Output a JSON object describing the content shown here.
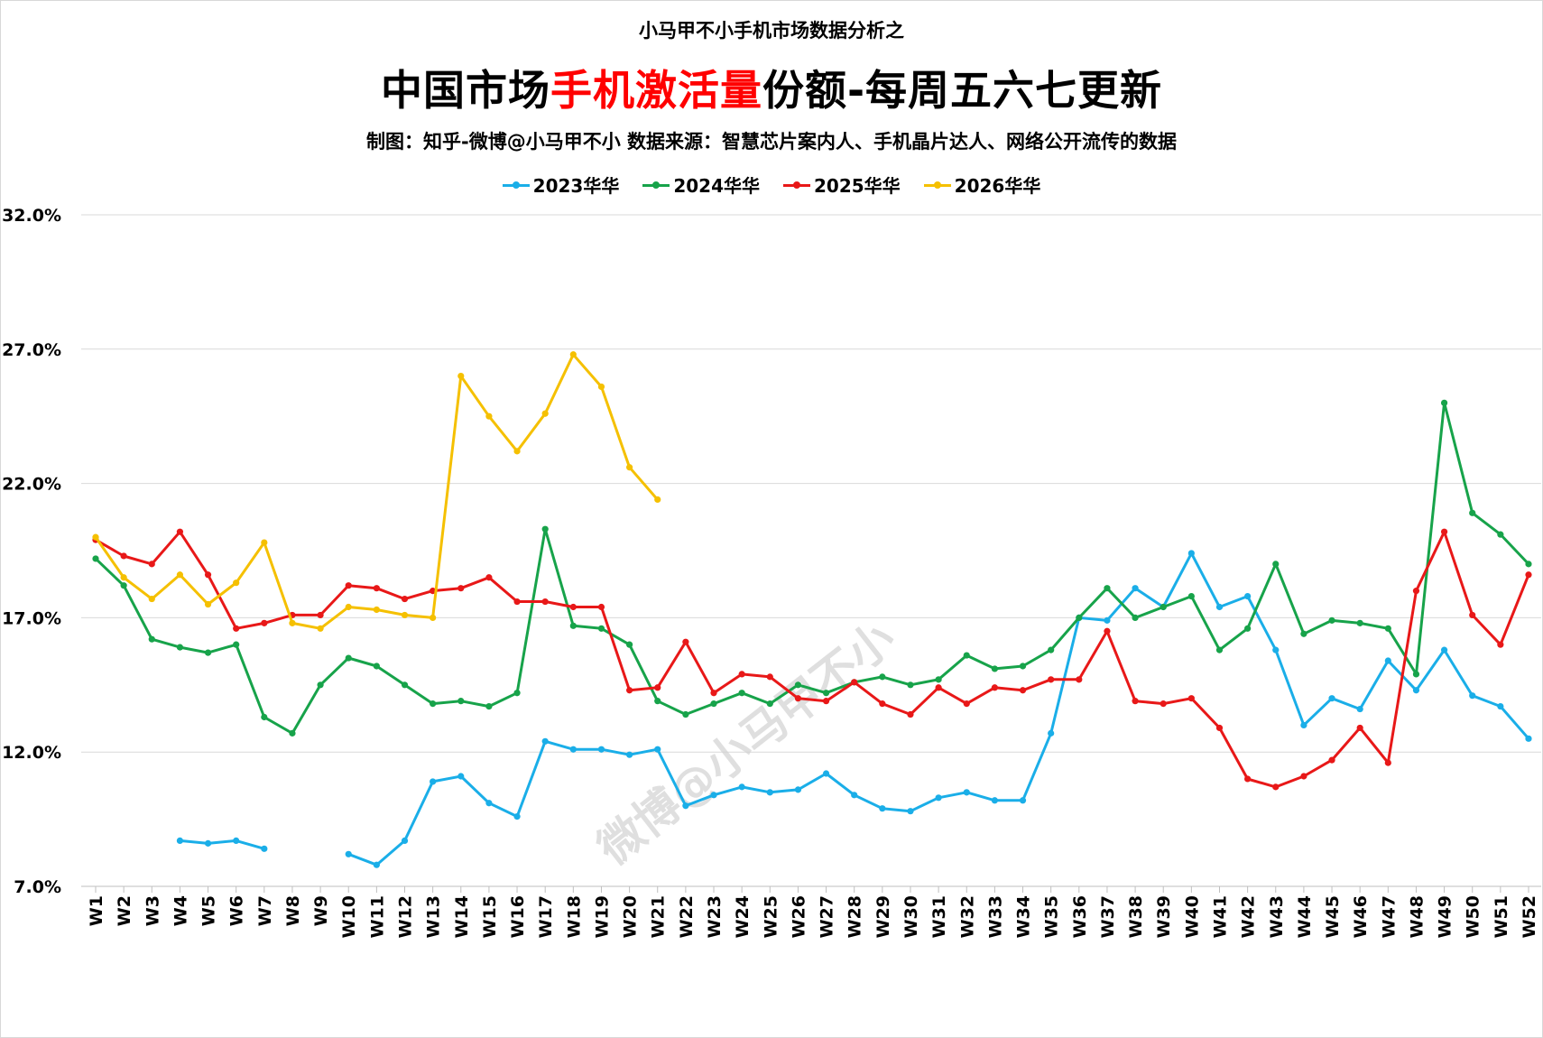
{
  "header": {
    "pretitle": "小马甲不小手机市场数据分析之",
    "title_prefix": "中国市场",
    "title_highlight": "手机激活量",
    "title_suffix": "份额-每周五六七更新",
    "subtitle": "制图：知乎-微博@小马甲不小   数据来源：智慧芯片案内人、手机晶片达人、网络公开流传的数据"
  },
  "watermark": "微博@小马甲不小",
  "chart_data": {
    "type": "line",
    "title": "中国市场手机激活量份额-每周五六七更新",
    "ylim": [
      7,
      32
    ],
    "yticks": [
      "32.0%",
      "27.0%",
      "22.0%",
      "17.0%",
      "12.0%",
      "7.0%"
    ],
    "ytick_values": [
      32,
      27,
      22,
      17,
      12,
      7
    ],
    "grid": true,
    "legend": "top-center",
    "categories": [
      "W1",
      "W2",
      "W3",
      "W4",
      "W5",
      "W6",
      "W7",
      "W8",
      "W9",
      "W10",
      "W11",
      "W12",
      "W13",
      "W14",
      "W15",
      "W16",
      "W17",
      "W18",
      "W19",
      "W20",
      "W21",
      "W22",
      "W23",
      "W24",
      "W25",
      "W26",
      "W27",
      "W28",
      "W29",
      "W30",
      "W31",
      "W32",
      "W33",
      "W34",
      "W35",
      "W36",
      "W37",
      "W38",
      "W39",
      "W40",
      "W41",
      "W42",
      "W43",
      "W44",
      "W45",
      "W46",
      "W47",
      "W48",
      "W49",
      "W50",
      "W51",
      "W52"
    ],
    "series": [
      {
        "name": "2023华华",
        "color": "#1aaee8",
        "values": [
          null,
          null,
          null,
          8.7,
          8.6,
          8.7,
          8.4,
          null,
          null,
          8.2,
          7.8,
          8.7,
          10.9,
          11.1,
          10.1,
          9.6,
          12.4,
          12.1,
          12.1,
          11.9,
          12.1,
          10.0,
          10.4,
          10.7,
          10.5,
          10.6,
          11.2,
          10.4,
          9.9,
          9.8,
          10.3,
          10.5,
          10.2,
          10.2,
          12.7,
          17.0,
          16.9,
          18.1,
          17.4,
          19.4,
          17.4,
          17.8,
          15.8,
          13.0,
          14.0,
          13.6,
          15.4,
          14.3,
          15.8,
          14.1,
          13.7,
          12.5
        ]
      },
      {
        "name": "2024华华",
        "color": "#17a34a",
        "values": [
          19.2,
          18.2,
          16.2,
          15.9,
          15.7,
          16.0,
          13.3,
          12.7,
          14.5,
          15.5,
          15.2,
          14.5,
          13.8,
          13.9,
          13.7,
          14.2,
          20.3,
          16.7,
          16.6,
          16.0,
          13.9,
          13.4,
          13.8,
          14.2,
          13.8,
          14.5,
          14.2,
          14.6,
          14.8,
          14.5,
          14.7,
          15.6,
          15.1,
          15.2,
          15.8,
          17.0,
          18.1,
          17.0,
          17.4,
          17.8,
          15.8,
          16.6,
          19.0,
          16.4,
          16.9,
          16.8,
          16.6,
          14.9,
          25.0,
          20.9,
          20.1,
          19.0
        ]
      },
      {
        "name": "2025华华",
        "color": "#e81818",
        "values": [
          19.9,
          19.3,
          19.0,
          20.2,
          18.6,
          16.6,
          16.8,
          17.1,
          17.1,
          18.2,
          18.1,
          17.7,
          18.0,
          18.1,
          18.5,
          17.6,
          17.6,
          17.4,
          17.4,
          14.3,
          14.4,
          16.1,
          14.2,
          14.9,
          14.8,
          14.0,
          13.9,
          14.6,
          13.8,
          13.4,
          14.4,
          13.8,
          14.4,
          14.3,
          14.7,
          14.7,
          16.5,
          13.9,
          13.8,
          14.0,
          12.9,
          11.0,
          10.7,
          11.1,
          11.7,
          12.9,
          11.6,
          18.0,
          20.2,
          17.1,
          16.0,
          18.6
        ]
      },
      {
        "name": "2026华华",
        "color": "#f5c000",
        "values": [
          20.0,
          18.5,
          17.7,
          18.6,
          17.5,
          18.3,
          19.8,
          16.8,
          16.6,
          17.4,
          17.3,
          17.1,
          17.0,
          26.0,
          24.5,
          23.2,
          24.6,
          26.8,
          25.6,
          22.6,
          21.4,
          null,
          null,
          null,
          null,
          null,
          null,
          null,
          null,
          null,
          null,
          null,
          null,
          null,
          null,
          null,
          null,
          null,
          null,
          null,
          null,
          null,
          null,
          null,
          null,
          null,
          null,
          null,
          null,
          null,
          null,
          null
        ]
      }
    ]
  }
}
